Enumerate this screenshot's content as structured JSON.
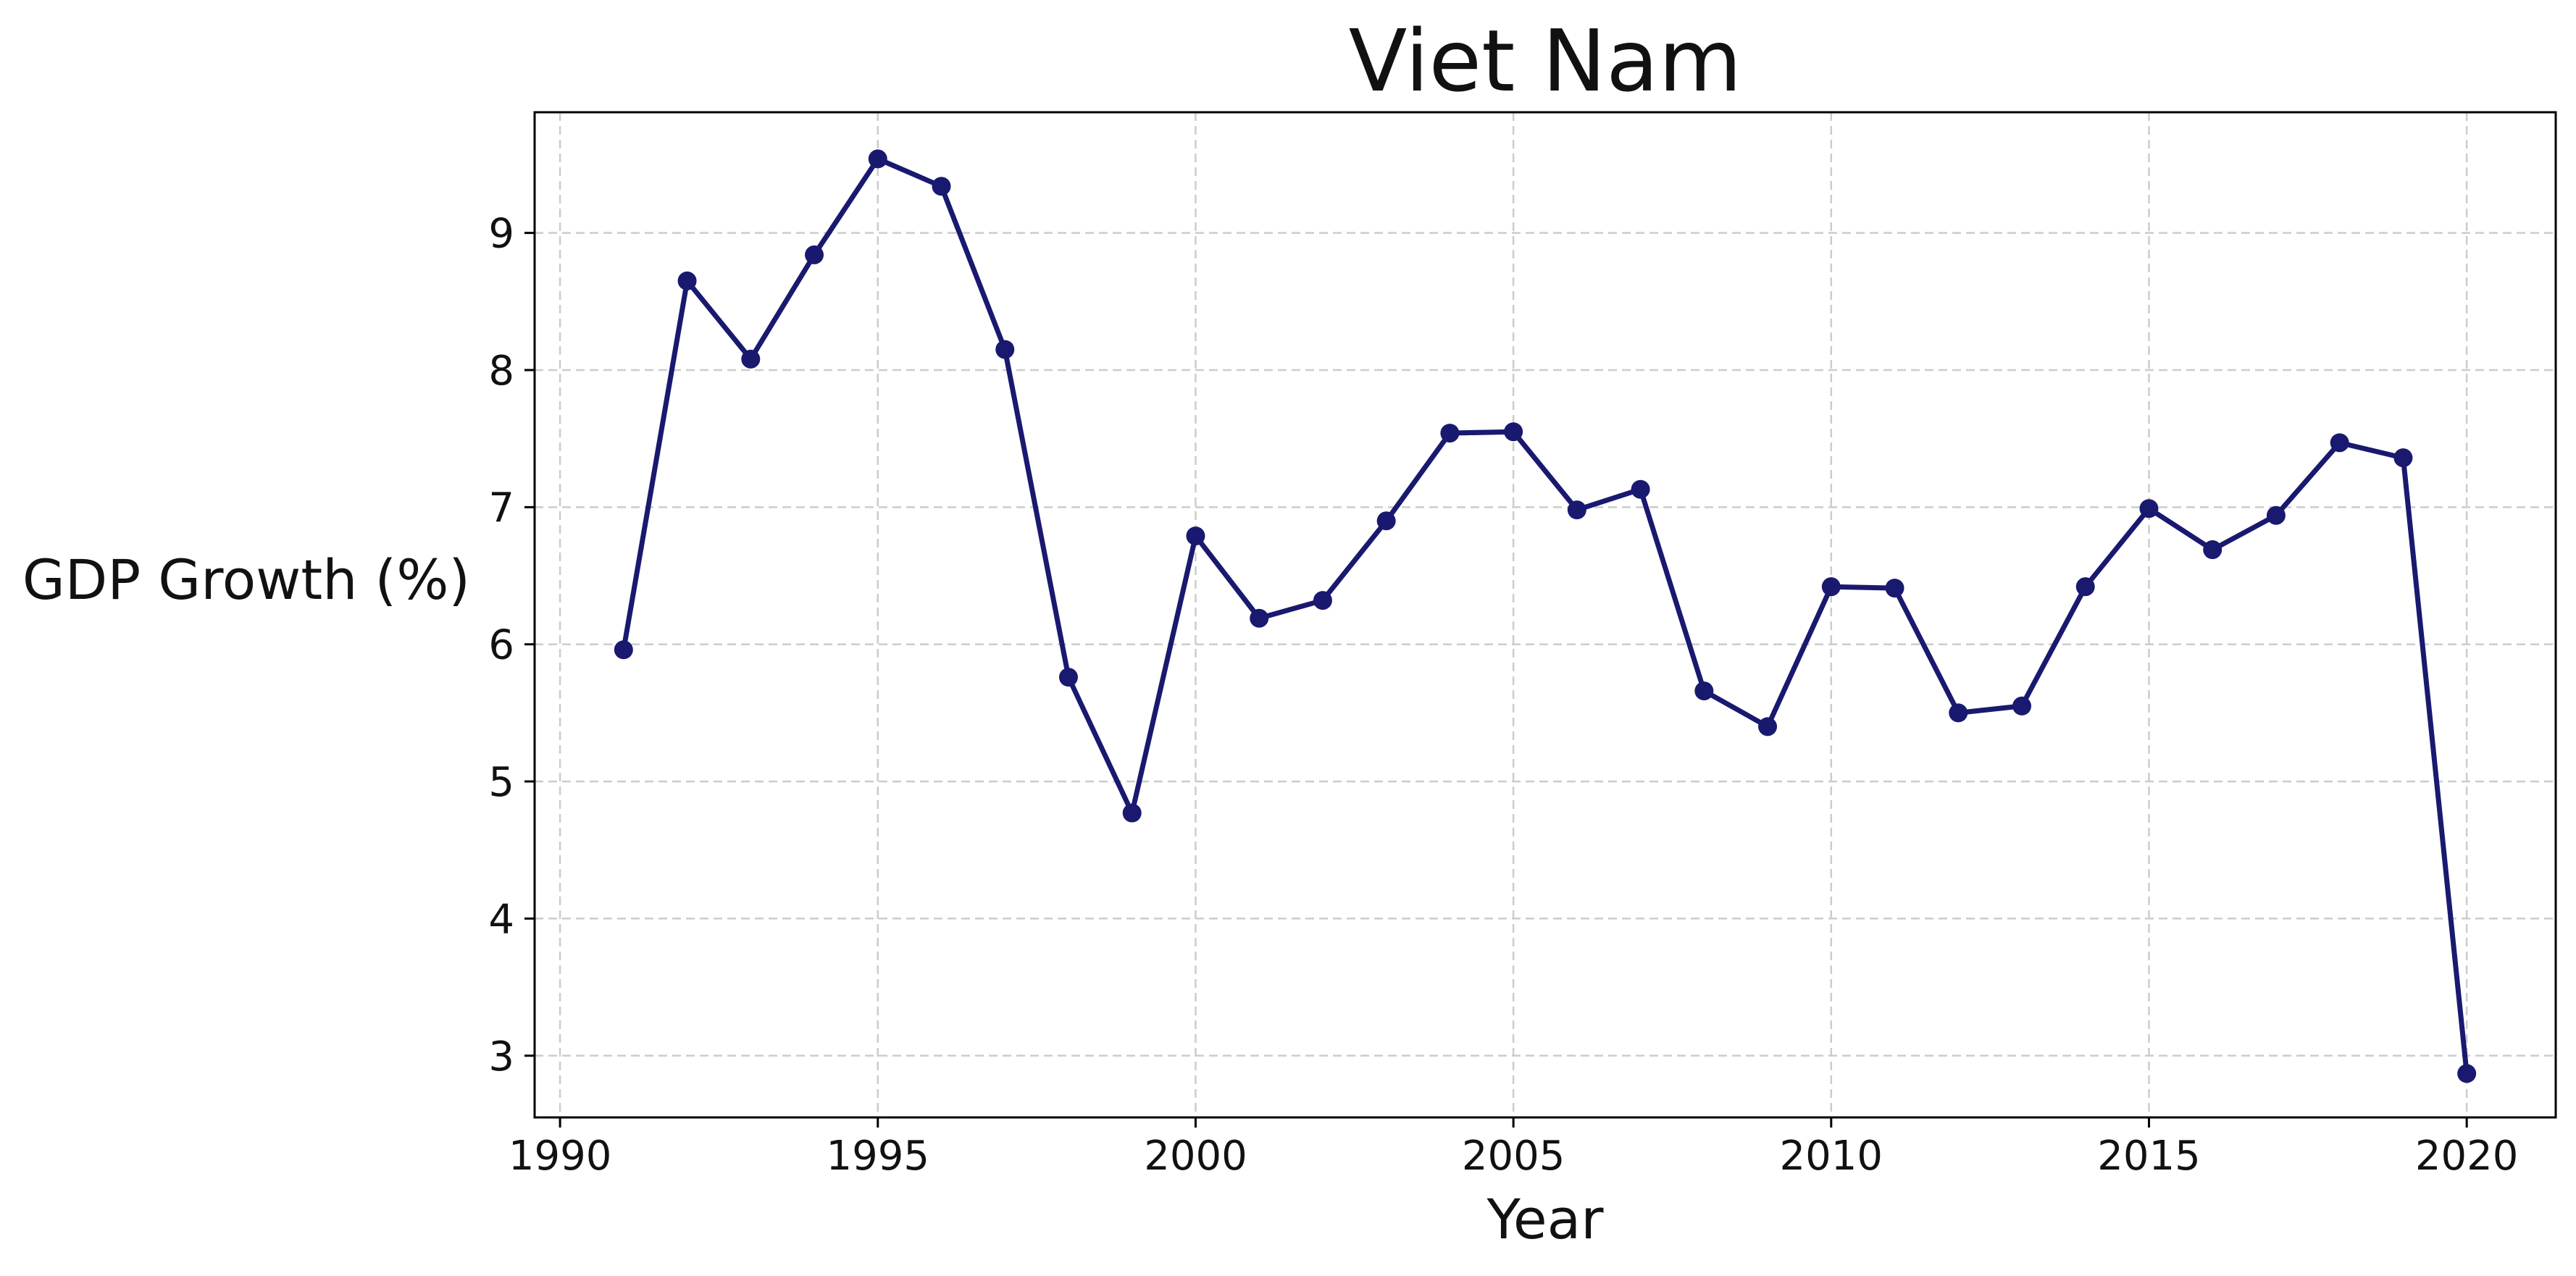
{
  "chart_data": {
    "type": "line",
    "title": "Viet Nam",
    "xlabel": "Year",
    "ylabel": "GDP Growth (%)",
    "xlim": [
      1989.6,
      2021.4
    ],
    "ylim": [
      2.55,
      9.88
    ],
    "x_ticks": [
      1990,
      1995,
      2000,
      2005,
      2010,
      2015,
      2020
    ],
    "y_ticks": [
      3,
      4,
      5,
      6,
      7,
      8,
      9
    ],
    "grid": true,
    "legend": "none",
    "line_color": "#191970",
    "series": [
      {
        "x": [
          1991,
          1992,
          1993,
          1994,
          1995,
          1996,
          1997,
          1998,
          1999,
          2000,
          2001,
          2002,
          2003,
          2004,
          2005,
          2006,
          2007,
          2008,
          2009,
          2010,
          2011,
          2012,
          2013,
          2014,
          2015,
          2016,
          2017,
          2018,
          2019,
          2020
        ],
        "values": [
          5.96,
          8.65,
          8.08,
          8.84,
          9.54,
          9.34,
          8.15,
          5.76,
          4.77,
          6.79,
          6.19,
          6.32,
          6.9,
          7.54,
          7.55,
          6.98,
          7.13,
          5.66,
          5.4,
          6.42,
          6.41,
          5.5,
          5.55,
          6.42,
          6.99,
          6.69,
          6.94,
          7.47,
          7.36,
          2.87
        ]
      }
    ]
  }
}
